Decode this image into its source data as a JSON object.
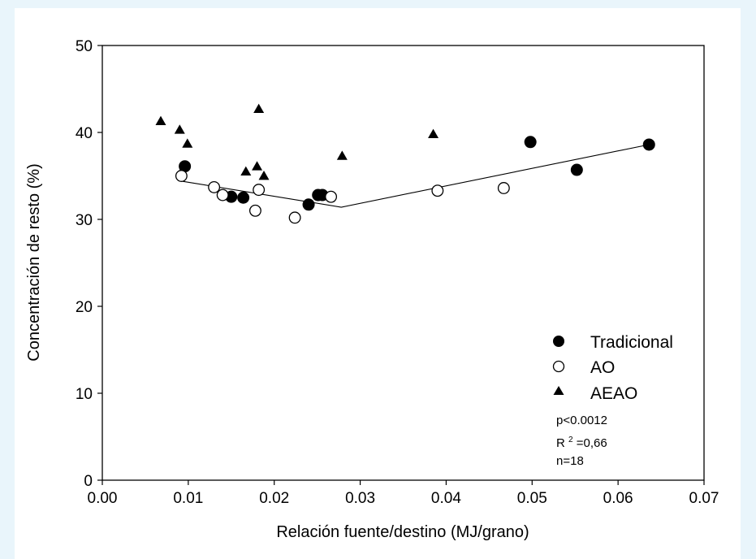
{
  "chart_data": {
    "type": "scatter",
    "xlabel": "Relación fuente/destino (MJ/grano)",
    "ylabel": "Concentración de resto (%)",
    "xlim": [
      0,
      0.07
    ],
    "ylim": [
      0,
      50
    ],
    "x_ticks": [
      "0.00",
      "0.01",
      "0.02",
      "0.03",
      "0.04",
      "0.05",
      "0.06",
      "0.07"
    ],
    "y_ticks": [
      "0",
      "10",
      "20",
      "30",
      "40",
      "50"
    ],
    "grid": false,
    "legend_position": "bottom-right",
    "series": [
      {
        "name": "Tradicional",
        "marker": "filled-circle",
        "color": "#000000",
        "points": [
          [
            0.0096,
            36.1
          ],
          [
            0.015,
            32.6
          ],
          [
            0.0164,
            32.5
          ],
          [
            0.024,
            31.7
          ],
          [
            0.0251,
            32.8
          ],
          [
            0.0256,
            32.8
          ],
          [
            0.0498,
            38.9
          ],
          [
            0.0552,
            35.7
          ],
          [
            0.0636,
            38.6
          ]
        ]
      },
      {
        "name": "AO",
        "marker": "open-circle",
        "color": "#000000",
        "points": [
          [
            0.0092,
            35.0
          ],
          [
            0.013,
            33.7
          ],
          [
            0.014,
            32.8
          ],
          [
            0.0178,
            31.0
          ],
          [
            0.0182,
            33.4
          ],
          [
            0.0224,
            30.2
          ],
          [
            0.0266,
            32.6
          ],
          [
            0.039,
            33.3
          ],
          [
            0.0467,
            33.6
          ]
        ]
      },
      {
        "name": "AEAO",
        "marker": "filled-triangle",
        "color": "#000000",
        "points": [
          [
            0.0068,
            41.3
          ],
          [
            0.009,
            40.3
          ],
          [
            0.0099,
            38.7
          ],
          [
            0.0167,
            35.5
          ],
          [
            0.018,
            36.1
          ],
          [
            0.0182,
            42.7
          ],
          [
            0.0188,
            35.0
          ],
          [
            0.0279,
            37.3
          ],
          [
            0.0385,
            39.8
          ]
        ]
      }
    ],
    "fit_line": [
      [
        0.0092,
        34.4
      ],
      [
        0.0278,
        31.4
      ],
      [
        0.0636,
        38.6
      ]
    ],
    "stats": [
      "p<0.0012",
      "R",
      "2",
      "=0,66",
      "n=18"
    ]
  }
}
